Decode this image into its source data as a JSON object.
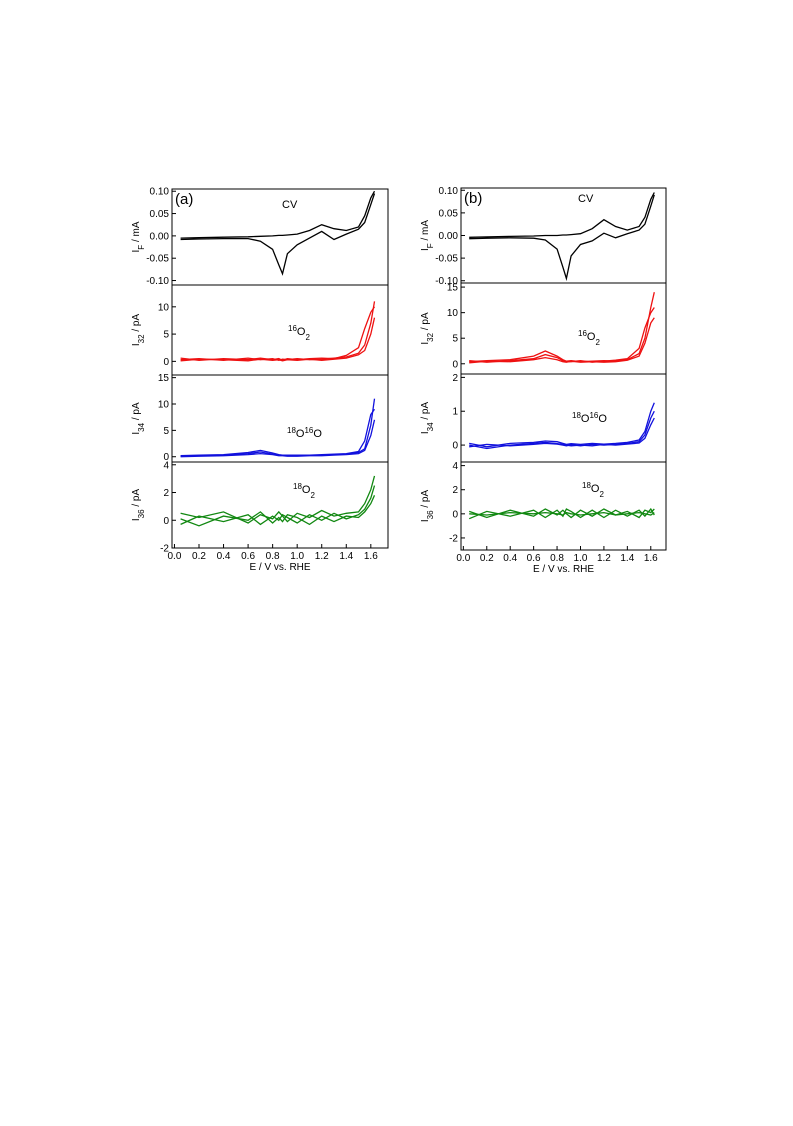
{
  "chart_data": [
    {
      "type": "line",
      "panel_label": "(a)",
      "annotation": [
        {
          "text": "CV",
          "pos": "base"
        }
      ],
      "y_label": [
        {
          "text": "I",
          "pos": "base"
        },
        {
          "text": "F",
          "pos": "sub"
        },
        {
          "text": " / mA",
          "pos": "base"
        }
      ],
      "xlim": [
        -0.02,
        1.74
      ],
      "ylim": [
        -0.11,
        0.105
      ],
      "yticks": [
        {
          "value": 0.1,
          "label": "0.10"
        },
        {
          "value": 0.05,
          "label": "0.05"
        },
        {
          "value": 0,
          "label": "0.00"
        },
        {
          "value": -0.05,
          "label": "-0.05"
        },
        {
          "value": -0.1,
          "label": "-0.10"
        }
      ],
      "x": [
        0.05,
        0.2,
        0.4,
        0.6,
        0.7,
        0.8,
        0.85,
        0.88,
        0.92,
        1.0,
        1.1,
        1.2,
        1.3,
        1.4,
        1.5,
        1.55,
        1.6,
        1.63
      ],
      "series": [
        {
          "color": "#000000",
          "values": [
            -0.005,
            -0.004,
            -0.003,
            -0.002,
            -0.001,
            0,
            0.001,
            0.001,
            0.002,
            0.004,
            0.012,
            0.025,
            0.016,
            0.012,
            0.02,
            0.045,
            0.085,
            0.1
          ]
        },
        {
          "color": "#000000",
          "values": [
            -0.008,
            -0.007,
            -0.006,
            -0.006,
            -0.012,
            -0.03,
            -0.065,
            -0.085,
            -0.04,
            -0.02,
            -0.005,
            0.01,
            -0.008,
            0.004,
            0.015,
            0.03,
            0.07,
            0.095
          ]
        }
      ]
    },
    {
      "type": "line",
      "annotation": [
        {
          "text": "16",
          "pos": "sup"
        },
        {
          "text": "O",
          "pos": "base"
        },
        {
          "text": "2",
          "pos": "sub"
        }
      ],
      "y_label": [
        {
          "text": "I",
          "pos": "base"
        },
        {
          "text": "32",
          "pos": "sub"
        },
        {
          "text": " /  pA",
          "pos": "base"
        }
      ],
      "xlim": [
        -0.02,
        1.74
      ],
      "ylim": [
        -2.5,
        14
      ],
      "yticks": [
        0,
        5,
        10
      ],
      "x": [
        0.05,
        0.2,
        0.4,
        0.6,
        0.7,
        0.8,
        0.85,
        0.88,
        0.92,
        1.0,
        1.1,
        1.2,
        1.3,
        1.4,
        1.5,
        1.55,
        1.6,
        1.63
      ],
      "series": [
        {
          "color": "#ee1111",
          "values": [
            0.3,
            0.5,
            0.2,
            0.6,
            0.3,
            0.5,
            0.2,
            0.4,
            0.3,
            0.5,
            0.3,
            0.4,
            0.6,
            0.8,
            1.5,
            3,
            7,
            11
          ]
        },
        {
          "color": "#ee1111",
          "values": [
            0.6,
            0.2,
            0.5,
            0.3,
            0.6,
            0.3,
            0.5,
            0.2,
            0.5,
            0.3,
            0.5,
            0.6,
            0.5,
            1.1,
            2.5,
            6,
            9,
            10
          ]
        },
        {
          "color": "#ee1111",
          "values": [
            0.1,
            0.4,
            0.3,
            0.1,
            0.4,
            0.2,
            0.3,
            0.1,
            0.3,
            0.2,
            0.4,
            0.2,
            0.4,
            0.6,
            1.2,
            2,
            5,
            8
          ]
        }
      ]
    },
    {
      "type": "line",
      "annotation": [
        {
          "text": "18",
          "pos": "sup"
        },
        {
          "text": "O",
          "pos": "base"
        },
        {
          "text": "16",
          "pos": "sup"
        },
        {
          "text": "O",
          "pos": "base"
        }
      ],
      "y_label": [
        {
          "text": "I",
          "pos": "base"
        },
        {
          "text": "34",
          "pos": "sub"
        },
        {
          "text": " /  pA",
          "pos": "base"
        }
      ],
      "xlim": [
        -0.02,
        1.74
      ],
      "ylim": [
        -1,
        15.5
      ],
      "yticks": [
        0,
        5,
        10,
        15
      ],
      "x": [
        0.05,
        0.2,
        0.4,
        0.6,
        0.7,
        0.8,
        0.85,
        0.88,
        0.92,
        1.0,
        1.1,
        1.2,
        1.3,
        1.4,
        1.5,
        1.55,
        1.6,
        1.63
      ],
      "series": [
        {
          "color": "#1111dd",
          "values": [
            0.1,
            0.2,
            0.3,
            0.6,
            0.9,
            0.5,
            0.3,
            0.3,
            0.2,
            0.2,
            0.3,
            0.3,
            0.4,
            0.5,
            0.8,
            1.5,
            6,
            11
          ]
        },
        {
          "color": "#1111dd",
          "values": [
            0.2,
            0.3,
            0.4,
            0.8,
            1.2,
            0.7,
            0.4,
            0.3,
            0.3,
            0.3,
            0.3,
            0.4,
            0.5,
            0.6,
            1,
            3,
            8,
            9
          ]
        },
        {
          "color": "#1111dd",
          "values": [
            0,
            0.1,
            0.2,
            0.4,
            0.6,
            0.4,
            0.2,
            0.2,
            0.1,
            0.1,
            0.2,
            0.2,
            0.3,
            0.4,
            0.6,
            1.2,
            4,
            7
          ]
        }
      ]
    },
    {
      "type": "line",
      "annotation": [
        {
          "text": "18",
          "pos": "sup"
        },
        {
          "text": "O",
          "pos": "base"
        },
        {
          "text": "2",
          "pos": "sub"
        }
      ],
      "y_label": [
        {
          "text": "I",
          "pos": "base"
        },
        {
          "text": "36",
          "pos": "sub"
        },
        {
          "text": " /  pA",
          "pos": "base"
        }
      ],
      "x_label": "E / V vs. RHE",
      "xlim": [
        -0.02,
        1.74
      ],
      "ylim": [
        -2,
        4.2
      ],
      "yticks": [
        -2,
        0,
        2,
        4
      ],
      "xticks": [
        {
          "value": 0,
          "label": "0.0"
        },
        {
          "value": 0.2,
          "label": "0.2"
        },
        {
          "value": 0.4,
          "label": "0.4"
        },
        {
          "value": 0.6,
          "label": "0.6"
        },
        {
          "value": 0.8,
          "label": "0.8"
        },
        {
          "value": 1,
          "label": "1.0"
        },
        {
          "value": 1.2,
          "label": "1.2"
        },
        {
          "value": 1.4,
          "label": "1.4"
        },
        {
          "value": 1.6,
          "label": "1.6"
        }
      ],
      "x": [
        0.05,
        0.2,
        0.4,
        0.6,
        0.7,
        0.8,
        0.85,
        0.88,
        0.92,
        1.0,
        1.1,
        1.2,
        1.3,
        1.4,
        1.5,
        1.55,
        1.6,
        1.63
      ],
      "series": [
        {
          "color": "#118811",
          "values": [
            0.5,
            0.2,
            0.6,
            -0.2,
            0.4,
            0.1,
            0.6,
            0.3,
            -0.1,
            0.5,
            0.2,
            0.7,
            0.3,
            0.5,
            0.6,
            1.2,
            2.2,
            3.2
          ]
        },
        {
          "color": "#118811",
          "values": [
            -0.3,
            0.3,
            -0.1,
            0.4,
            -0.3,
            0.3,
            0,
            0.4,
            0.2,
            -0.2,
            0.4,
            0,
            0.5,
            0.1,
            0.4,
            0.8,
            1.6,
            2.5
          ]
        },
        {
          "color": "#118811",
          "values": [
            0.1,
            -0.4,
            0.3,
            0,
            0.6,
            -0.2,
            0.2,
            -0.1,
            0.4,
            0.2,
            -0.3,
            0.3,
            -0.1,
            0.3,
            0.2,
            0.6,
            1.2,
            1.8
          ]
        }
      ]
    },
    {
      "type": "line",
      "panel_label": "(b)",
      "annotation": [
        {
          "text": "CV",
          "pos": "base"
        }
      ],
      "y_label": [
        {
          "text": "I",
          "pos": "base"
        },
        {
          "text": "F",
          "pos": "sub"
        },
        {
          "text": " / mA",
          "pos": "base"
        }
      ],
      "xlim": [
        -0.02,
        1.73
      ],
      "ylim": [
        -0.105,
        0.105
      ],
      "yticks": [
        {
          "value": 0.1,
          "label": "0.10"
        },
        {
          "value": 0.05,
          "label": "0.05"
        },
        {
          "value": 0,
          "label": "0.00"
        },
        {
          "value": -0.05,
          "label": "-0.05"
        },
        {
          "value": -0.1,
          "label": "-0.10"
        }
      ],
      "x": [
        0.05,
        0.2,
        0.4,
        0.6,
        0.7,
        0.8,
        0.85,
        0.88,
        0.92,
        1.0,
        1.1,
        1.2,
        1.3,
        1.4,
        1.5,
        1.55,
        1.6,
        1.63
      ],
      "series": [
        {
          "color": "#000000",
          "values": [
            -0.004,
            -0.003,
            -0.002,
            -0.001,
            0,
            0,
            0.001,
            0.001,
            0.002,
            0.004,
            0.015,
            0.035,
            0.02,
            0.012,
            0.02,
            0.04,
            0.08,
            0.095
          ]
        },
        {
          "color": "#000000",
          "values": [
            -0.007,
            -0.006,
            -0.005,
            -0.006,
            -0.01,
            -0.03,
            -0.07,
            -0.095,
            -0.045,
            -0.02,
            -0.012,
            0.005,
            -0.005,
            0.004,
            0.012,
            0.025,
            0.065,
            0.09
          ]
        }
      ]
    },
    {
      "type": "line",
      "annotation": [
        {
          "text": "16",
          "pos": "sup"
        },
        {
          "text": "O",
          "pos": "base"
        },
        {
          "text": "2",
          "pos": "sub"
        }
      ],
      "y_label": [
        {
          "text": "I",
          "pos": "base"
        },
        {
          "text": "32",
          "pos": "sub"
        },
        {
          "text": " /  pA",
          "pos": "base"
        }
      ],
      "xlim": [
        -0.02,
        1.73
      ],
      "ylim": [
        -2,
        15.8
      ],
      "yticks": [
        0,
        5,
        10,
        15
      ],
      "x": [
        0.05,
        0.2,
        0.4,
        0.6,
        0.7,
        0.8,
        0.85,
        0.88,
        0.92,
        1.0,
        1.1,
        1.2,
        1.3,
        1.4,
        1.5,
        1.55,
        1.6,
        1.63
      ],
      "series": [
        {
          "color": "#ee1111",
          "values": [
            0.4,
            0.6,
            0.8,
            1.5,
            2.5,
            1.5,
            0.8,
            0.5,
            0.6,
            0.4,
            0.5,
            0.6,
            0.5,
            0.8,
            2,
            5,
            11,
            14
          ]
        },
        {
          "color": "#ee1111",
          "values": [
            0.6,
            0.3,
            0.6,
            1.0,
            1.8,
            1.2,
            0.6,
            0.4,
            0.4,
            0.6,
            0.3,
            0.5,
            0.7,
            1,
            3,
            7,
            10,
            11
          ]
        },
        {
          "color": "#ee1111",
          "values": [
            0.2,
            0.5,
            0.4,
            0.8,
            1.2,
            0.8,
            0.4,
            0.3,
            0.5,
            0.3,
            0.4,
            0.3,
            0.4,
            0.7,
            1.5,
            4,
            8,
            9
          ]
        }
      ]
    },
    {
      "type": "line",
      "annotation": [
        {
          "text": "18",
          "pos": "sup"
        },
        {
          "text": "O",
          "pos": "base"
        },
        {
          "text": "16",
          "pos": "sup"
        },
        {
          "text": "O",
          "pos": "base"
        }
      ],
      "y_label": [
        {
          "text": "I",
          "pos": "base"
        },
        {
          "text": "34",
          "pos": "sub"
        },
        {
          "text": " /  pA",
          "pos": "base"
        }
      ],
      "xlim": [
        -0.02,
        1.73
      ],
      "ylim": [
        -0.5,
        2.1
      ],
      "yticks": [
        0,
        1,
        2
      ],
      "x": [
        0.05,
        0.2,
        0.4,
        0.6,
        0.7,
        0.8,
        0.85,
        0.88,
        0.92,
        1.0,
        1.1,
        1.2,
        1.3,
        1.4,
        1.5,
        1.55,
        1.6,
        1.63
      ],
      "series": [
        {
          "color": "#1111dd",
          "values": [
            0.05,
            -0.05,
            0.05,
            0.08,
            0.12,
            0.1,
            0.05,
            0.02,
            0.04,
            0.02,
            0.05,
            0.03,
            0.05,
            0.08,
            0.15,
            0.4,
            1.0,
            1.25
          ]
        },
        {
          "color": "#1111dd",
          "values": [
            -0.05,
            0.02,
            -0.02,
            0.02,
            0.05,
            0.03,
            0,
            -0.02,
            0.01,
            -0.02,
            0.02,
            0,
            0.02,
            0.05,
            0.1,
            0.3,
            0.8,
            1.0
          ]
        },
        {
          "color": "#1111dd",
          "values": [
            0,
            -0.1,
            0,
            0.05,
            0.08,
            0.04,
            0.02,
            0,
            -0.02,
            0,
            -0.02,
            0.02,
            0,
            0.03,
            0.06,
            0.2,
            0.6,
            0.8
          ]
        }
      ]
    },
    {
      "type": "line",
      "annotation": [
        {
          "text": "18",
          "pos": "sup"
        },
        {
          "text": "O",
          "pos": "base"
        },
        {
          "text": "2",
          "pos": "sub"
        }
      ],
      "y_label": [
        {
          "text": "I",
          "pos": "base"
        },
        {
          "text": "36",
          "pos": "sub"
        },
        {
          "text": " /  pA",
          "pos": "base"
        }
      ],
      "x_label": "E / V vs. RHE",
      "xlim": [
        -0.02,
        1.73
      ],
      "ylim": [
        -3,
        4.3
      ],
      "yticks": [
        -2,
        0,
        2,
        4
      ],
      "xticks": [
        {
          "value": 0,
          "label": "0.0"
        },
        {
          "value": 0.2,
          "label": "0.2"
        },
        {
          "value": 0.4,
          "label": "0.4"
        },
        {
          "value": 0.6,
          "label": "0.6"
        },
        {
          "value": 0.8,
          "label": "0.8"
        },
        {
          "value": 1,
          "label": "1.0"
        },
        {
          "value": 1.2,
          "label": "1.2"
        },
        {
          "value": 1.4,
          "label": "1.4"
        },
        {
          "value": 1.6,
          "label": "1.6"
        }
      ],
      "x": [
        0.05,
        0.2,
        0.4,
        0.6,
        0.7,
        0.8,
        0.85,
        0.88,
        0.92,
        1.0,
        1.1,
        1.2,
        1.3,
        1.4,
        1.5,
        1.55,
        1.6,
        1.63
      ],
      "series": [
        {
          "color": "#118811",
          "values": [
            0.2,
            -0.3,
            0.3,
            -0.2,
            0.4,
            -0.1,
            0.3,
            0,
            -0.3,
            0.3,
            -0.2,
            0.4,
            -0.1,
            0.2,
            -0.3,
            0.3,
            0.1,
            0.4
          ]
        },
        {
          "color": "#118811",
          "values": [
            -0.4,
            0.2,
            -0.2,
            0.3,
            -0.3,
            0.3,
            -0.2,
            0.4,
            0.2,
            -0.3,
            0.3,
            -0.3,
            0.3,
            -0.2,
            0.3,
            -0.2,
            0.4,
            -0.1
          ]
        },
        {
          "color": "#118811",
          "values": [
            0,
            -0.1,
            0.1,
            0,
            0.1,
            0,
            -0.1,
            0.1,
            0,
            -0.1,
            0,
            0.1,
            -0.1,
            0,
            0.1,
            0,
            -0.1,
            0.1
          ]
        }
      ]
    }
  ]
}
